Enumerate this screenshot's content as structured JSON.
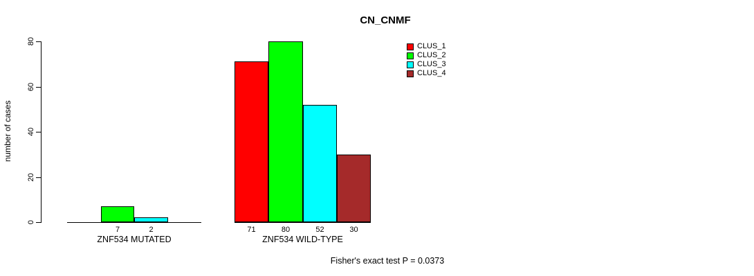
{
  "chart_data": {
    "type": "bar",
    "title": "CN_CNMF",
    "ylabel": "number of cases",
    "xlabel": "",
    "ylim": [
      0,
      80
    ],
    "yticks": [
      0,
      20,
      40,
      60,
      80
    ],
    "grid": false,
    "legend_position": "top-right",
    "categories": [
      "ZNF534 MUTATED",
      "ZNF534 WILD-TYPE"
    ],
    "series": [
      {
        "name": "CLUS_1",
        "color": "#FF0000"
      },
      {
        "name": "CLUS_2",
        "color": "#00FF00"
      },
      {
        "name": "CLUS_3",
        "color": "#00FFFF"
      },
      {
        "name": "CLUS_4",
        "color": "#A52A2A"
      }
    ],
    "groups": [
      {
        "label": "ZNF534 MUTATED",
        "values": [
          0,
          7,
          2,
          0
        ]
      },
      {
        "label": "ZNF534 WILD-TYPE",
        "values": [
          71,
          80,
          52,
          30
        ]
      }
    ],
    "bar_outline_color": "#000000",
    "annotation": "Fisher's exact test P = 0.0373"
  }
}
